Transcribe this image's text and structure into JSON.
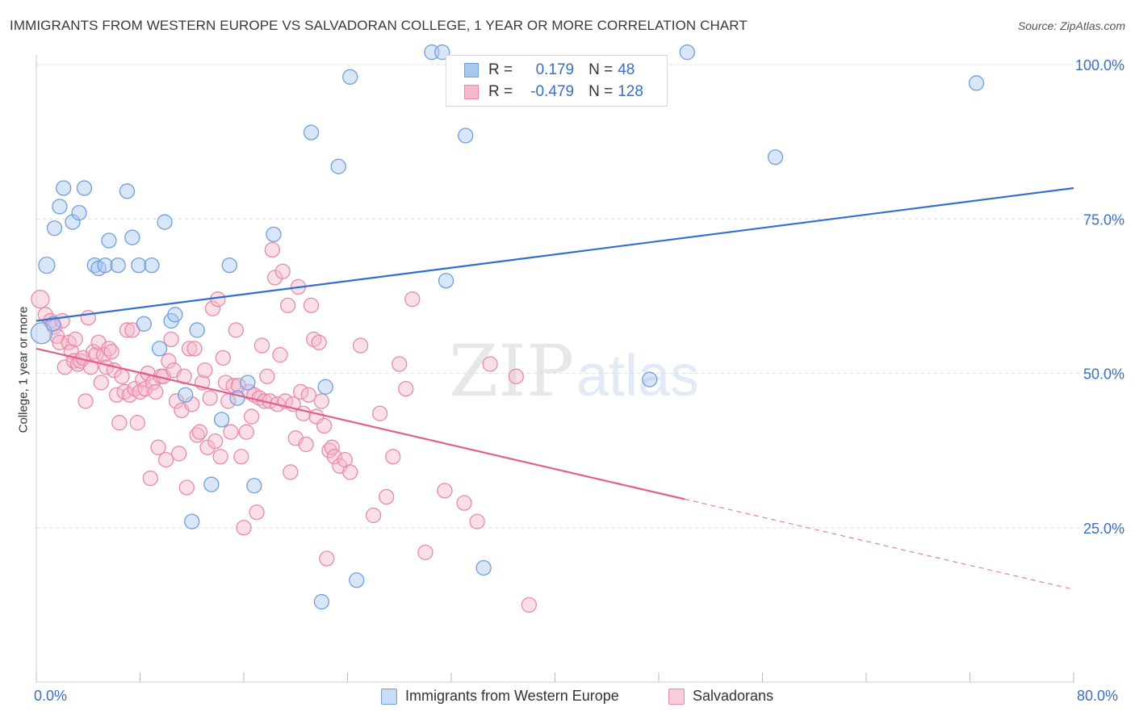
{
  "title": "IMMIGRANTS FROM WESTERN EUROPE VS SALVADORAN COLLEGE, 1 YEAR OR MORE CORRELATION CHART",
  "source": "Source: ZipAtlas.com",
  "watermark": {
    "zip": "ZIP",
    "atlas": "atlas"
  },
  "legend": {
    "r_label": "R =",
    "n_label": "N =",
    "series1": {
      "r": "0.179",
      "n": "48"
    },
    "series2": {
      "r": "-0.479",
      "n": "128"
    }
  },
  "x_axis": {
    "min_label": "0.0%",
    "max_label": "80.0%"
  },
  "colors": {
    "blue_fill": "#a9c8ef",
    "blue_stroke": "#6f9fde",
    "blue_line": "#2f6fd1",
    "pink_fill": "#f5b8cc",
    "pink_stroke": "#e98aaa",
    "pink_line": "#e0608c",
    "axis_text": "#3b6fc4",
    "grid": "#dddddd"
  },
  "chart_data": {
    "type": "scatter",
    "title": "IMMIGRANTS FROM WESTERN EUROPE VS SALVADORAN COLLEGE, 1 YEAR OR MORE CORRELATION CHART",
    "xlabel": "",
    "ylabel": "College, 1 year or more",
    "xlim": [
      0,
      80
    ],
    "ylim": [
      0,
      100
    ],
    "y_ticks": [
      25,
      50,
      75,
      100
    ],
    "y_tick_labels": [
      "25.0%",
      "50.0%",
      "75.0%",
      "100.0%"
    ],
    "x_tick_labels": [
      "0.0%",
      "80.0%"
    ],
    "grid": true,
    "legend_position": "top-center",
    "series": [
      {
        "name": "Immigrants from Western Europe",
        "color": "#6f9fde",
        "r": 0.179,
        "n": 48,
        "trend": {
          "x": [
            0,
            80
          ],
          "y": [
            58.5,
            80.0
          ],
          "dashed_from": null
        },
        "points": [
          [
            0.4,
            56.5,
            13
          ],
          [
            0.8,
            67.5,
            10
          ],
          [
            1.3,
            58.0,
            9
          ],
          [
            1.4,
            73.5,
            9
          ],
          [
            1.8,
            77.0,
            9
          ],
          [
            2.1,
            80.0,
            9
          ],
          [
            2.8,
            74.5,
            9
          ],
          [
            3.3,
            76.0,
            9
          ],
          [
            3.7,
            80.0,
            9
          ],
          [
            4.5,
            67.5,
            9
          ],
          [
            4.8,
            67.0,
            9
          ],
          [
            5.3,
            67.5,
            9
          ],
          [
            5.6,
            71.5,
            9
          ],
          [
            6.3,
            67.5,
            9
          ],
          [
            7.0,
            79.5,
            9
          ],
          [
            7.4,
            72.0,
            9
          ],
          [
            7.9,
            67.5,
            9
          ],
          [
            8.3,
            58.0,
            9
          ],
          [
            8.9,
            67.5,
            9
          ],
          [
            9.5,
            54.0,
            9
          ],
          [
            9.9,
            74.5,
            9
          ],
          [
            10.4,
            58.5,
            9
          ],
          [
            10.7,
            59.5,
            9
          ],
          [
            11.5,
            46.5,
            9
          ],
          [
            12.0,
            26.0,
            9
          ],
          [
            12.4,
            57.0,
            9
          ],
          [
            13.5,
            32.0,
            9
          ],
          [
            14.3,
            42.5,
            9
          ],
          [
            14.9,
            67.5,
            9
          ],
          [
            15.5,
            46.0,
            9
          ],
          [
            16.3,
            48.5,
            9
          ],
          [
            16.8,
            31.8,
            9
          ],
          [
            18.3,
            72.5,
            9
          ],
          [
            21.2,
            89.0,
            9
          ],
          [
            22.0,
            13.0,
            9
          ],
          [
            22.3,
            47.8,
            9
          ],
          [
            23.3,
            83.5,
            9
          ],
          [
            24.2,
            98.0,
            9
          ],
          [
            24.7,
            16.5,
            9
          ],
          [
            30.5,
            102.0,
            9
          ],
          [
            31.3,
            102.0,
            9
          ],
          [
            31.6,
            65.0,
            9
          ],
          [
            33.1,
            88.5,
            9
          ],
          [
            34.5,
            18.5,
            9
          ],
          [
            47.3,
            49.0,
            9
          ],
          [
            50.2,
            102.0,
            9
          ],
          [
            57.0,
            85.0,
            9
          ],
          [
            72.5,
            97.0,
            9
          ]
        ]
      },
      {
        "name": "Salvadorans",
        "color": "#e98aaa",
        "r": -0.479,
        "n": 128,
        "trend": {
          "x": [
            0,
            80
          ],
          "y": [
            54.0,
            15.0
          ],
          "dashed_from": 50
        },
        "points": [
          [
            0.3,
            62.0,
            11
          ],
          [
            0.7,
            59.5,
            9
          ],
          [
            1.1,
            58.5,
            9
          ],
          [
            1.4,
            57.5,
            9
          ],
          [
            1.6,
            56.0,
            9
          ],
          [
            1.8,
            55.0,
            9
          ],
          [
            2.0,
            58.5,
            9
          ],
          [
            2.2,
            51.0,
            9
          ],
          [
            2.5,
            55.0,
            9
          ],
          [
            2.7,
            53.5,
            9
          ],
          [
            2.9,
            52.0,
            9
          ],
          [
            3.0,
            55.5,
            9
          ],
          [
            3.2,
            51.5,
            9
          ],
          [
            3.4,
            52.0,
            9
          ],
          [
            3.6,
            52.5,
            9
          ],
          [
            3.8,
            45.5,
            9
          ],
          [
            4.0,
            59.0,
            9
          ],
          [
            4.2,
            51.0,
            9
          ],
          [
            4.4,
            53.5,
            9
          ],
          [
            4.6,
            53.0,
            9
          ],
          [
            4.8,
            55.0,
            9
          ],
          [
            5.0,
            48.5,
            9
          ],
          [
            5.2,
            53.0,
            9
          ],
          [
            5.4,
            51.0,
            9
          ],
          [
            5.6,
            54.0,
            9
          ],
          [
            5.8,
            53.5,
            9
          ],
          [
            6.0,
            50.5,
            9
          ],
          [
            6.2,
            46.5,
            9
          ],
          [
            6.4,
            42.0,
            9
          ],
          [
            6.6,
            49.5,
            9
          ],
          [
            6.8,
            47.0,
            9
          ],
          [
            7.0,
            57.0,
            9
          ],
          [
            7.2,
            46.5,
            9
          ],
          [
            7.4,
            57.0,
            9
          ],
          [
            7.6,
            47.5,
            9
          ],
          [
            7.8,
            42.0,
            9
          ],
          [
            8.0,
            47.0,
            9
          ],
          [
            8.2,
            49.0,
            9
          ],
          [
            8.4,
            47.5,
            9
          ],
          [
            8.6,
            50.0,
            9
          ],
          [
            8.8,
            33.0,
            9
          ],
          [
            9.0,
            48.5,
            9
          ],
          [
            9.2,
            47.0,
            9
          ],
          [
            9.4,
            38.0,
            9
          ],
          [
            9.6,
            49.5,
            9
          ],
          [
            9.8,
            49.5,
            9
          ],
          [
            10.0,
            36.0,
            9
          ],
          [
            10.2,
            52.0,
            9
          ],
          [
            10.4,
            55.5,
            9
          ],
          [
            10.6,
            50.5,
            9
          ],
          [
            10.8,
            45.5,
            9
          ],
          [
            11.0,
            37.0,
            9
          ],
          [
            11.2,
            44.0,
            9
          ],
          [
            11.4,
            49.5,
            9
          ],
          [
            11.6,
            31.5,
            9
          ],
          [
            11.8,
            54.0,
            9
          ],
          [
            12.0,
            45.0,
            9
          ],
          [
            12.2,
            54.0,
            9
          ],
          [
            12.4,
            40.0,
            9
          ],
          [
            12.6,
            40.5,
            9
          ],
          [
            12.8,
            48.5,
            9
          ],
          [
            13.0,
            50.5,
            9
          ],
          [
            13.2,
            38.0,
            9
          ],
          [
            13.4,
            46.0,
            9
          ],
          [
            13.6,
            60.5,
            9
          ],
          [
            13.8,
            39.0,
            9
          ],
          [
            14.0,
            62.0,
            9
          ],
          [
            14.2,
            36.5,
            9
          ],
          [
            14.4,
            52.5,
            9
          ],
          [
            14.6,
            48.5,
            9
          ],
          [
            14.8,
            45.5,
            9
          ],
          [
            15.0,
            40.5,
            9
          ],
          [
            15.2,
            48.0,
            9
          ],
          [
            15.4,
            57.0,
            9
          ],
          [
            15.6,
            48.0,
            9
          ],
          [
            15.8,
            36.5,
            9
          ],
          [
            16.0,
            25.0,
            9
          ],
          [
            16.2,
            40.5,
            9
          ],
          [
            16.4,
            47.0,
            9
          ],
          [
            16.6,
            43.0,
            9
          ],
          [
            16.8,
            46.5,
            9
          ],
          [
            17.0,
            27.5,
            9
          ],
          [
            17.2,
            46.0,
            9
          ],
          [
            17.4,
            54.5,
            9
          ],
          [
            17.6,
            45.5,
            9
          ],
          [
            17.8,
            49.5,
            9
          ],
          [
            18.0,
            45.5,
            9
          ],
          [
            18.2,
            70.0,
            9
          ],
          [
            18.4,
            65.5,
            9
          ],
          [
            18.6,
            45.0,
            9
          ],
          [
            18.8,
            53.0,
            9
          ],
          [
            19.0,
            66.5,
            9
          ],
          [
            19.2,
            45.5,
            9
          ],
          [
            19.4,
            61.0,
            9
          ],
          [
            19.6,
            34.0,
            9
          ],
          [
            19.8,
            45.0,
            9
          ],
          [
            20.0,
            39.5,
            9
          ],
          [
            20.2,
            64.0,
            9
          ],
          [
            20.4,
            47.0,
            9
          ],
          [
            20.6,
            43.5,
            9
          ],
          [
            20.8,
            38.5,
            9
          ],
          [
            21.0,
            46.5,
            9
          ],
          [
            21.2,
            61.0,
            9
          ],
          [
            21.4,
            55.5,
            9
          ],
          [
            21.6,
            43.0,
            9
          ],
          [
            21.8,
            55.0,
            9
          ],
          [
            22.0,
            45.5,
            9
          ],
          [
            22.2,
            41.5,
            9
          ],
          [
            22.4,
            20.0,
            9
          ],
          [
            22.6,
            37.5,
            9
          ],
          [
            22.8,
            38.0,
            9
          ],
          [
            23.0,
            36.5,
            9
          ],
          [
            23.4,
            35.0,
            9
          ],
          [
            23.8,
            36.0,
            9
          ],
          [
            24.2,
            34.0,
            9
          ],
          [
            25.0,
            54.5,
            9
          ],
          [
            26.0,
            27.0,
            9
          ],
          [
            26.5,
            43.5,
            9
          ],
          [
            27.0,
            30.0,
            9
          ],
          [
            27.5,
            36.5,
            9
          ],
          [
            28.0,
            51.5,
            9
          ],
          [
            28.5,
            47.5,
            9
          ],
          [
            29.0,
            62.0,
            9
          ],
          [
            30.0,
            21.0,
            9
          ],
          [
            31.5,
            31.0,
            9
          ],
          [
            33.0,
            29.0,
            9
          ],
          [
            34.0,
            26.0,
            9
          ],
          [
            35.0,
            51.5,
            9
          ],
          [
            37.0,
            49.5,
            9
          ],
          [
            38.0,
            12.5,
            9
          ]
        ]
      }
    ]
  }
}
